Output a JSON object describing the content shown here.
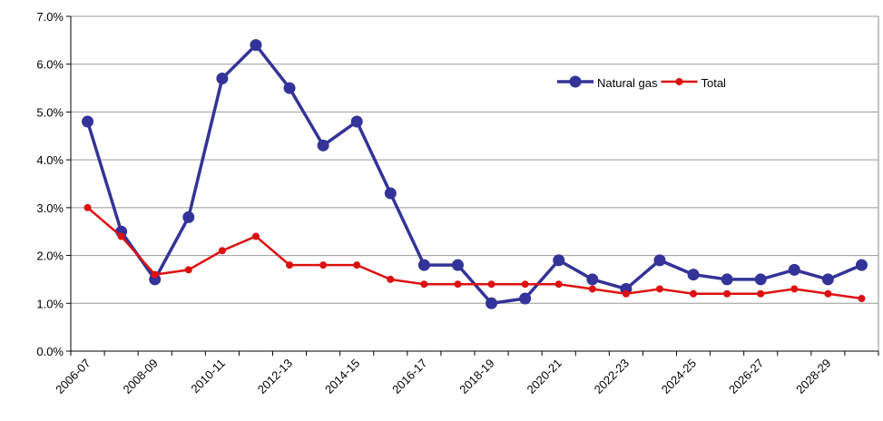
{
  "chart_data": {
    "type": "line",
    "categories": [
      "2006-07",
      null,
      "2008-09",
      null,
      "2010-11",
      null,
      "2012-13",
      null,
      "2014-15",
      null,
      "2016-17",
      null,
      "2018-19",
      null,
      "2020-21",
      null,
      "2022-23",
      null,
      "2024-25",
      null,
      "2026-27",
      null,
      "2028-29",
      null
    ],
    "series": [
      {
        "name": "Natural gas",
        "color": "#333399",
        "values": [
          4.8,
          2.5,
          1.5,
          2.8,
          5.7,
          6.4,
          5.5,
          4.3,
          4.8,
          3.3,
          1.8,
          1.8,
          1.0,
          1.1,
          1.9,
          1.5,
          1.3,
          1.9,
          1.6,
          1.5,
          1.5,
          1.7,
          1.5,
          1.8
        ]
      },
      {
        "name": "Total",
        "color": "#dd1111",
        "values": [
          3.0,
          2.4,
          1.6,
          1.7,
          2.1,
          2.4,
          1.8,
          1.8,
          1.8,
          1.5,
          1.4,
          1.4,
          1.4,
          1.4,
          1.4,
          1.3,
          1.2,
          1.3,
          1.2,
          1.2,
          1.2,
          1.3,
          1.2,
          1.1
        ]
      }
    ],
    "ylim": [
      0,
      7
    ],
    "yticks": [
      {
        "value": 0,
        "label": "0.0%"
      },
      {
        "value": 1,
        "label": "1.0%"
      },
      {
        "value": 2,
        "label": "2.0%"
      },
      {
        "value": 3,
        "label": "3.0%"
      },
      {
        "value": 4,
        "label": "4.0%"
      },
      {
        "value": 5,
        "label": "5.0%"
      },
      {
        "value": 6,
        "label": "6.0%"
      },
      {
        "value": 7,
        "label": "7.0%"
      }
    ],
    "grid": true,
    "legend": "upper right"
  }
}
